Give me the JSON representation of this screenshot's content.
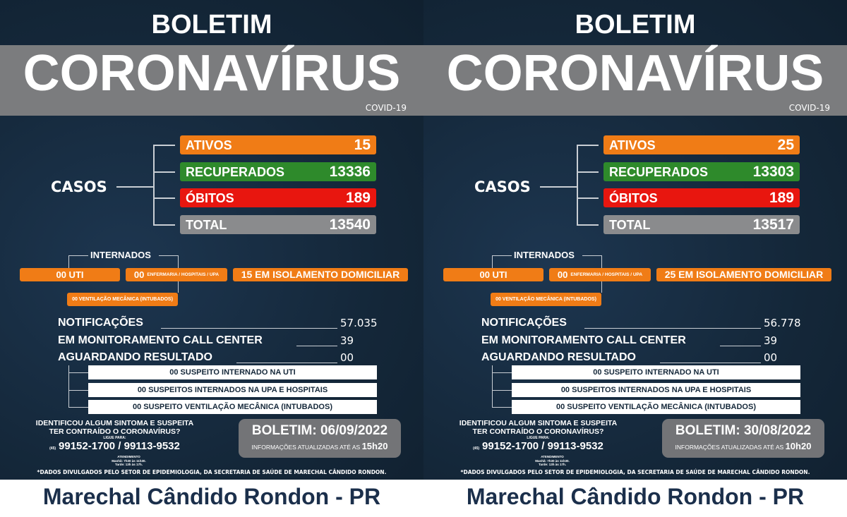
{
  "panels": [
    {
      "header": {
        "top": "BOLETIM",
        "title": "CORONAVÍRUS",
        "subtitle": "COVID-19"
      },
      "casos": {
        "label": "CASOS",
        "items": [
          {
            "label": "ATIVOS",
            "value": "15",
            "color": "#f07c16"
          },
          {
            "label": "RECUPERADOS",
            "value": "13336",
            "color": "#2e8a2b"
          },
          {
            "label": "ÓBITOS",
            "value": "189",
            "color": "#e8160f"
          },
          {
            "label": "TOTAL",
            "value": "13540",
            "color": "#8a8b8d"
          }
        ]
      },
      "internados": {
        "label": "INTERNADOS",
        "uti": "00 UTI",
        "enfermaria_count": "00",
        "enfermaria_label": "ENFERMARIA / HOSPITAIS / UPA",
        "isolamento": "15 EM ISOLAMENTO DOMICILIAR",
        "ventilacao": "00 VENTILAÇÃO MECÂNICA (INTUBADOS)"
      },
      "stats": [
        {
          "label": "NOTIFICAÇÕES",
          "value": "57.035"
        },
        {
          "label": "EM MONITORAMENTO CALL CENTER",
          "value": "39"
        },
        {
          "label": "AGUARDANDO RESULTADO",
          "value": "00"
        }
      ],
      "suspeitos": [
        "00 SUSPEITO INTERNADO NA UTI",
        "00 SUSPEITOS INTERNADOS NA UPA E HOSPITAIS",
        "00 SUSPEITO VENTILAÇÃO MECÂNICA (INTUBADOS)"
      ],
      "contact": {
        "line1": "IDENTIFICOU ALGUM SINTOMA E SUSPEITA",
        "line2": "TER CONTRAÍDO O CORONAVÍRUS?",
        "ligue": "LIGUE PARA:",
        "ddd": "(45)",
        "phones": "99152-1700 / 99113-9532",
        "atendimento": "ATENDIMENTO",
        "manha": "Manhã: 7h30 às 11h30.",
        "tarde": "Tarde: 13h às 17h."
      },
      "boletim": {
        "label": "BOLETIM: 06/09/2022",
        "info": "INFORMAÇÕES ATUALIZADAS ATÉ AS",
        "time": "15h20"
      },
      "note": "*DADOS DIVULGADOS PELO SETOR DE EPIDEMIOLOGIA, DA SECRETARIA DE SAÚDE DE MARECHAL CÂNDIDO RONDON.",
      "city": "Marechal Cândido Rondon - PR"
    },
    {
      "header": {
        "top": "BOLETIM",
        "title": "CORONAVÍRUS",
        "subtitle": "COVID-19"
      },
      "casos": {
        "label": "CASOS",
        "items": [
          {
            "label": "ATIVOS",
            "value": "25",
            "color": "#f07c16"
          },
          {
            "label": "RECUPERADOS",
            "value": "13303",
            "color": "#2e8a2b"
          },
          {
            "label": "ÓBITOS",
            "value": "189",
            "color": "#e8160f"
          },
          {
            "label": "TOTAL",
            "value": "13517",
            "color": "#8a8b8d"
          }
        ]
      },
      "internados": {
        "label": "INTERNADOS",
        "uti": "00 UTI",
        "enfermaria_count": "00",
        "enfermaria_label": "ENFERMARIA / HOSPITAIS / UPA",
        "isolamento": "25 EM ISOLAMENTO DOMICILIAR",
        "ventilacao": "00 VENTILAÇÃO MECÂNICA (INTUBADOS)"
      },
      "stats": [
        {
          "label": "NOTIFICAÇÕES",
          "value": "56.778"
        },
        {
          "label": "EM MONITORAMENTO CALL CENTER",
          "value": "39"
        },
        {
          "label": "AGUARDANDO RESULTADO",
          "value": "00"
        }
      ],
      "suspeitos": [
        "00 SUSPEITO INTERNADO NA UTI",
        "00 SUSPEITOS INTERNADOS NA UPA E HOSPITAIS",
        "00 SUSPEITO VENTILAÇÃO MECÂNICA (INTUBADOS)"
      ],
      "contact": {
        "line1": "IDENTIFICOU ALGUM SINTOMA E SUSPEITA",
        "line2": "TER CONTRAÍDO O CORONAVÍRUS?",
        "ligue": "LIGUE PARA:",
        "ddd": "(45)",
        "phones": "99152-1700 / 99113-9532",
        "atendimento": "ATENDIMENTO",
        "manha": "Manhã: 7h30 às 11h30.",
        "tarde": "Tarde: 13h às 17h."
      },
      "boletim": {
        "label": "BOLETIM: 30/08/2022",
        "info": "INFORMAÇÕES ATUALIZADAS ATÉ AS",
        "time": "10h20"
      },
      "note": "*DADOS DIVULGADOS PELO SETOR DE EPIDEMIOLOGIA, DA SECRETARIA DE SAÚDE DE MARECHAL CÂNDIDO RONDON.",
      "city": "Marechal Cândido Rondon - PR"
    }
  ]
}
